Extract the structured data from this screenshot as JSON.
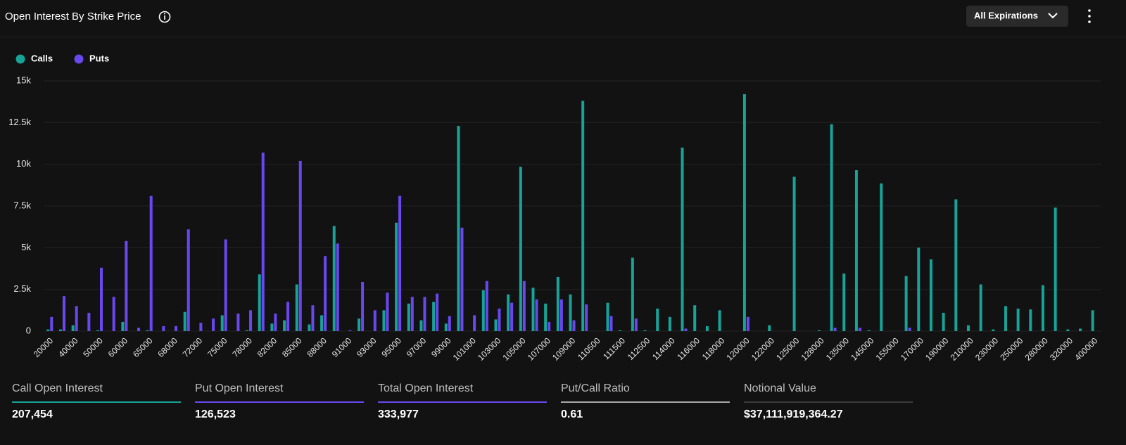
{
  "chart_data": {
    "type": "bar",
    "title": "Open Interest By Strike Price",
    "categories": [
      "20000",
      null,
      "40000",
      null,
      "50000",
      null,
      "60000",
      null,
      "65000",
      null,
      "68000",
      null,
      "72000",
      null,
      "75000",
      null,
      "78000",
      null,
      "82000",
      null,
      "85000",
      null,
      "88000",
      null,
      "91000",
      null,
      "93000",
      null,
      "95000",
      null,
      "97000",
      null,
      "99000",
      null,
      "101000",
      null,
      "103000",
      null,
      "105000",
      null,
      "107000",
      null,
      "109000",
      null,
      "110500",
      null,
      "111500",
      null,
      "112500",
      null,
      "114000",
      null,
      "116000",
      null,
      "118000",
      null,
      "120000",
      null,
      "122000",
      null,
      "125000",
      null,
      "128000",
      null,
      "135000",
      null,
      "145000",
      null,
      "155000",
      null,
      "170000",
      null,
      "190000",
      null,
      "210000",
      null,
      "230000",
      null,
      "250000",
      null,
      "280000",
      null,
      "320000",
      null,
      "400000"
    ],
    "series": [
      {
        "name": "Calls",
        "color": "#17a398",
        "values": [
          100,
          100,
          350,
          0,
          50,
          0,
          550,
          0,
          50,
          0,
          0,
          1150,
          0,
          0,
          950,
          0,
          50,
          3400,
          450,
          650,
          2800,
          400,
          950,
          6300,
          0,
          750,
          0,
          1250,
          6500,
          1650,
          650,
          1750,
          450,
          12300,
          0,
          2450,
          700,
          2200,
          9850,
          2600,
          1650,
          3250,
          2200,
          13800,
          0,
          1700,
          50,
          4400,
          50,
          1350,
          850,
          11000,
          1550,
          300,
          1250,
          0,
          14200,
          0,
          350,
          0,
          9250,
          0,
          50,
          12400,
          3450,
          9650,
          50,
          8850,
          0,
          3300,
          5000,
          4300,
          1100,
          7900,
          350,
          2800,
          100,
          1500,
          1350,
          1300,
          2750,
          7400,
          100,
          150,
          1250
        ]
      },
      {
        "name": "Puts",
        "color": "#6a48f0",
        "values": [
          850,
          2100,
          1500,
          1100,
          3800,
          2050,
          5400,
          200,
          8100,
          300,
          300,
          6100,
          500,
          750,
          5500,
          1050,
          1250,
          10700,
          1050,
          1750,
          10200,
          1550,
          4500,
          5250,
          50,
          2950,
          1250,
          2300,
          8100,
          2050,
          2050,
          2250,
          900,
          6200,
          950,
          3000,
          1350,
          1700,
          3000,
          1900,
          550,
          1900,
          650,
          1600,
          0,
          900,
          0,
          750,
          0,
          0,
          0,
          150,
          0,
          0,
          0,
          0,
          850,
          0,
          0,
          0,
          0,
          0,
          0,
          200,
          0,
          200,
          0,
          0,
          0,
          200,
          0,
          0,
          0,
          0,
          0,
          0,
          0,
          0,
          0,
          0,
          0,
          0,
          0,
          0,
          0
        ]
      }
    ],
    "ylim": [
      0,
      15000
    ],
    "yticks": [
      0,
      {
        "value": 2500,
        "label": "2.5k"
      },
      {
        "value": 5000,
        "label": "5k"
      },
      {
        "value": 7500,
        "label": "7.5k"
      },
      {
        "value": 10000,
        "label": "10k"
      },
      {
        "value": 12500,
        "label": "12.5k"
      },
      {
        "value": 15000,
        "label": "15k"
      }
    ],
    "grid": true
  },
  "controls": {
    "expiration": "All Expirations"
  },
  "stats": [
    {
      "label": "Call Open Interest",
      "value": "207,454",
      "color": "#17a398"
    },
    {
      "label": "Put Open Interest",
      "value": "126,523",
      "color": "#6a48f0"
    },
    {
      "label": "Total Open Interest",
      "value": "333,977",
      "color": "#6a48f0"
    },
    {
      "label": "Put/Call Ratio",
      "value": "0.61",
      "color": "#a8a8a8"
    },
    {
      "label": "Notional Value",
      "value": "$37,111,919,364.27",
      "color": "#3a3a3a"
    }
  ]
}
